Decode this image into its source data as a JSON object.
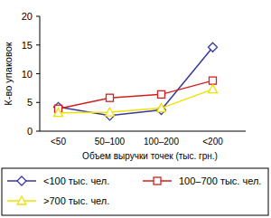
{
  "chart_data": {
    "type": "line",
    "y_label": "К-во упаковок",
    "x_label": "Объем выручки точек (тыс. грн.)",
    "categories": [
      "<50",
      "50–100",
      "100–200",
      "<200"
    ],
    "series": [
      {
        "name": "<100 тыс. чел.",
        "color": "#3a3a9c",
        "marker": "diamond",
        "values": [
          4.2,
          2.7,
          3.7,
          14.6
        ]
      },
      {
        "name": "100–700 тыс. чел.",
        "color": "#d42020",
        "marker": "square",
        "values": [
          3.9,
          5.8,
          6.4,
          8.8
        ]
      },
      {
        "name": ">700 тыс. чел.",
        "color": "#f0e000",
        "marker": "triangle",
        "values": [
          3.2,
          3.3,
          4.0,
          7.3
        ]
      }
    ],
    "ylim": [
      0,
      20
    ],
    "yticks": [
      0,
      5,
      10,
      15,
      20
    ],
    "grid": false,
    "legend": "bottom"
  }
}
